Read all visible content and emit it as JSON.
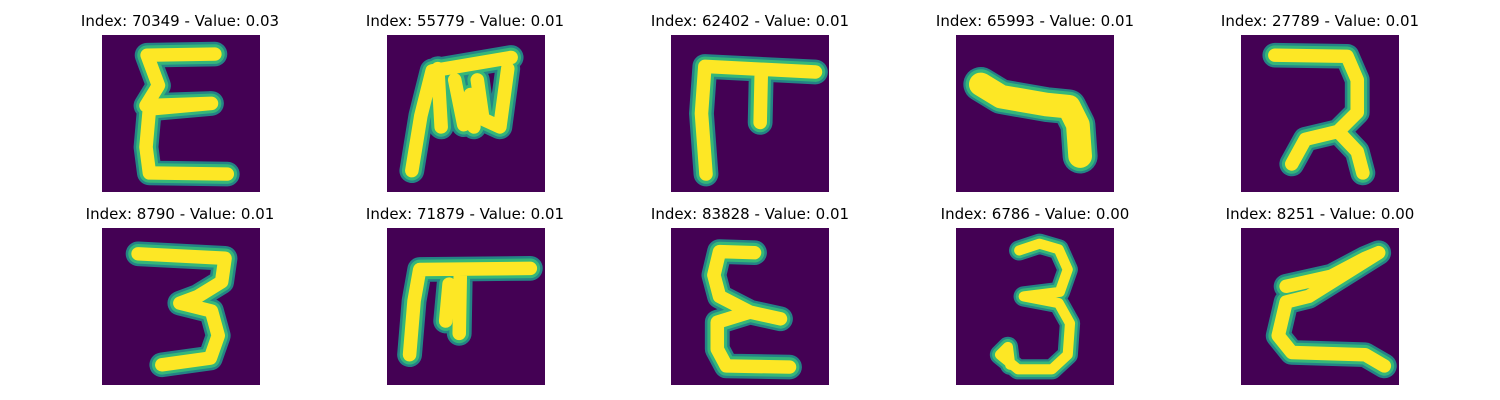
{
  "colors": {
    "background": "#440154",
    "glyph_core": "#fde725",
    "glyph_edge": "#35b779",
    "glyph_halo": "#21918c"
  },
  "panels": [
    {
      "title": "Index: 70349 - Value: 0.03",
      "glyph": "epsilon-like"
    },
    {
      "title": "Index: 55779 - Value: 0.01",
      "glyph": "m-like"
    },
    {
      "title": "Index: 62402 - Value: 0.01",
      "glyph": "pi-like"
    },
    {
      "title": "Index: 65993 - Value: 0.01",
      "glyph": "hook-like"
    },
    {
      "title": "Index: 27789 - Value: 0.01",
      "glyph": "reversed-2-like"
    },
    {
      "title": "Index: 8790 - Value: 0.01",
      "glyph": "three-like"
    },
    {
      "title": "Index: 71879 - Value: 0.01",
      "glyph": "pi-like"
    },
    {
      "title": "Index: 83828 - Value: 0.01",
      "glyph": "epsilon-like"
    },
    {
      "title": "Index: 6786 - Value: 0.00",
      "glyph": "three-like"
    },
    {
      "title": "Index: 8251 - Value: 0.00",
      "glyph": "z-like"
    }
  ]
}
